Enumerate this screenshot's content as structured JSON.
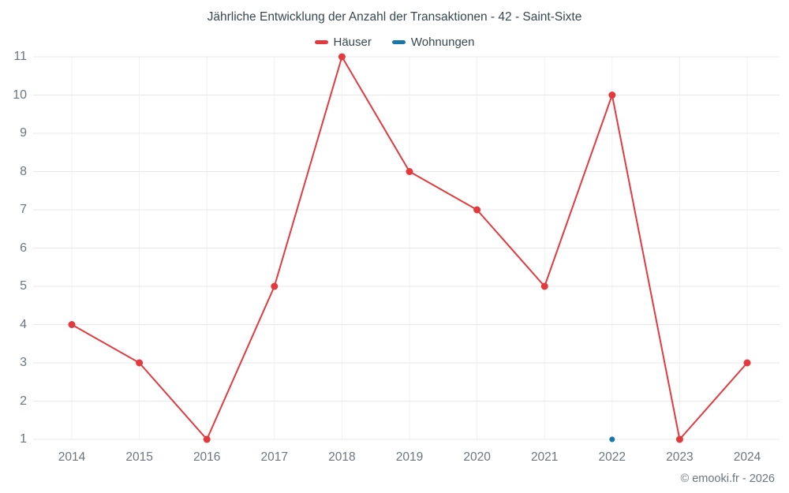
{
  "title": "Jährliche Entwicklung der Anzahl der Transaktionen - 42 - Saint-Sixte",
  "footer": "© emooki.fr - 2026",
  "legend": {
    "items": [
      {
        "label": "Häuser",
        "color": "#e23a3f"
      },
      {
        "label": "Wohnungen",
        "color": "#1778a8"
      }
    ]
  },
  "colors": {
    "grid_horizontal": "#e8e8e8",
    "grid_vertical": "#f1f1f1",
    "axis_text": "#6b7680",
    "title_text": "#37474f",
    "background": "#ffffff",
    "haeuser_red": "#e23a3f",
    "wohnungen_blue": "#1778a8"
  },
  "chart_data": {
    "type": "line",
    "title": "Jährliche Entwicklung der Anzahl der Transaktionen - 42 - Saint-Sixte",
    "categories": [
      "2014",
      "2015",
      "2016",
      "2017",
      "2018",
      "2019",
      "2020",
      "2021",
      "2022",
      "2023",
      "2024"
    ],
    "series": [
      {
        "name": "Häuser",
        "color": "#e23a3f",
        "marker_radius": 4.5,
        "line_width": 2,
        "values": [
          4,
          3,
          1,
          5,
          11,
          8,
          7,
          5,
          10,
          1,
          3
        ]
      },
      {
        "name": "Wohnungen",
        "color": "#1778a8",
        "marker_radius": 3.5,
        "line_width": 2,
        "values": [
          null,
          null,
          null,
          null,
          null,
          null,
          null,
          null,
          1,
          null,
          null
        ]
      }
    ],
    "xlabel": "",
    "ylabel": "",
    "ylim": [
      1,
      11
    ],
    "yticks": [
      1,
      2,
      3,
      4,
      5,
      6,
      7,
      8,
      9,
      10,
      11
    ],
    "grid": true,
    "legend_position": "top"
  },
  "layout_note": ""
}
